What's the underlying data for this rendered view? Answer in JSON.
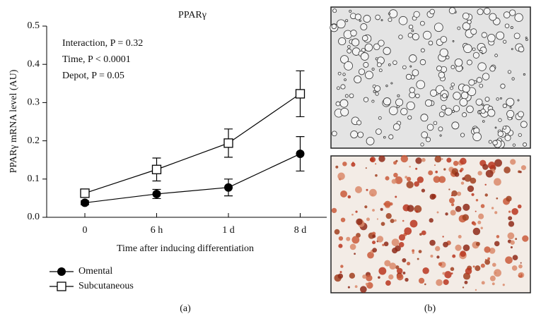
{
  "chart_data": {
    "type": "line",
    "title": "PPARγ",
    "ylabel": "PPARγ mRNA level (AU)",
    "xlabel": "Time after inducing differentiation",
    "annotations": [
      "Interaction, P = 0.32",
      "Time, P < 0.0001",
      "Depot, P = 0.05"
    ],
    "categories": [
      "0",
      "6 h",
      "1 d",
      "8 d"
    ],
    "series": [
      {
        "name": "Omental",
        "color": "#000000",
        "marker": "filled-circle",
        "values": [
          0.038,
          0.061,
          0.078,
          0.166
        ],
        "errors": [
          0.005,
          0.012,
          0.022,
          0.045
        ]
      },
      {
        "name": "Subcutaneous",
        "color": "#000000",
        "marker": "open-square",
        "values": [
          0.063,
          0.125,
          0.194,
          0.323
        ],
        "errors": [
          0.008,
          0.03,
          0.037,
          0.06
        ]
      }
    ],
    "ylim": [
      0,
      0.5
    ],
    "yticks": [
      {
        "value": 0,
        "label": "0.0"
      },
      0.1,
      0.2,
      0.3,
      0.4,
      0.5
    ],
    "panel_labels": [
      "(a)",
      "(b)"
    ]
  }
}
